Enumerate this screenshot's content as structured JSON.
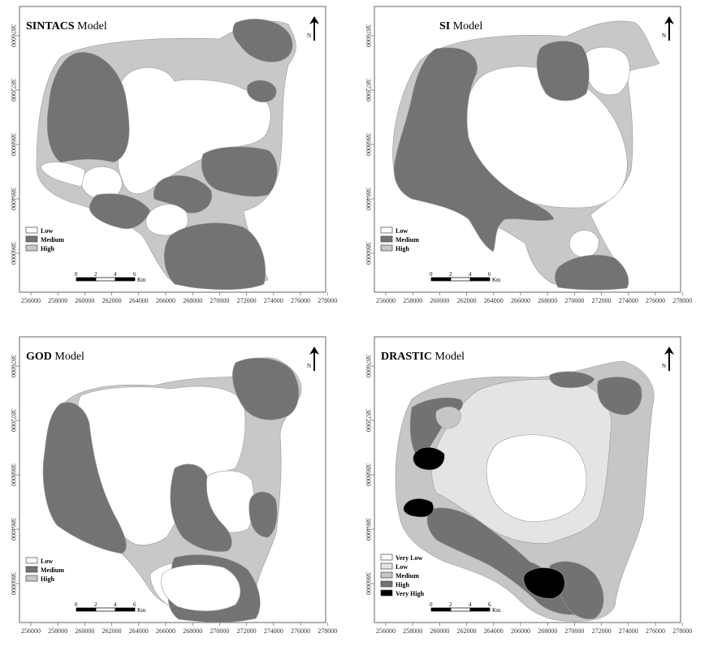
{
  "colors": {
    "low": "#ffffff",
    "medium": "#737373",
    "high": "#c8c8c8",
    "very_low": "#ffffff",
    "drastic_low": "#e4e4e4",
    "drastic_medium": "#c6c6c6",
    "drastic_high": "#727272",
    "very_high": "#000000",
    "frame": "#666666"
  },
  "x_ticks": [
    "256000",
    "258000",
    "260000",
    "262000",
    "264000",
    "266000",
    "268000",
    "270000",
    "272000",
    "274000",
    "276000",
    "278000"
  ],
  "y_ticks": [
    "3876000",
    "3872000",
    "3868000",
    "3864000",
    "3860000"
  ],
  "scale": {
    "labels": [
      "0",
      "2",
      "4",
      "6"
    ],
    "unit": "Km"
  },
  "north": {
    "letter": "N",
    "icon": "north-arrow-icon"
  },
  "panels": [
    {
      "id": "sintacs",
      "title_bold": "SINTACS",
      "title_rest": "Model",
      "legend": [
        "Low",
        "Medium",
        "High"
      ]
    },
    {
      "id": "si",
      "title_bold": "SI",
      "title_rest": "Model",
      "legend": [
        "Low",
        "Medium",
        "High"
      ]
    },
    {
      "id": "god",
      "title_bold": "GOD",
      "title_rest": "Model",
      "legend": [
        "Low",
        "Medium",
        "High"
      ]
    },
    {
      "id": "drastic",
      "title_bold": "DRASTIC",
      "title_rest": "Model",
      "legend": [
        "Very Low",
        "Low",
        "Medium",
        "High",
        "Very High"
      ]
    }
  ]
}
